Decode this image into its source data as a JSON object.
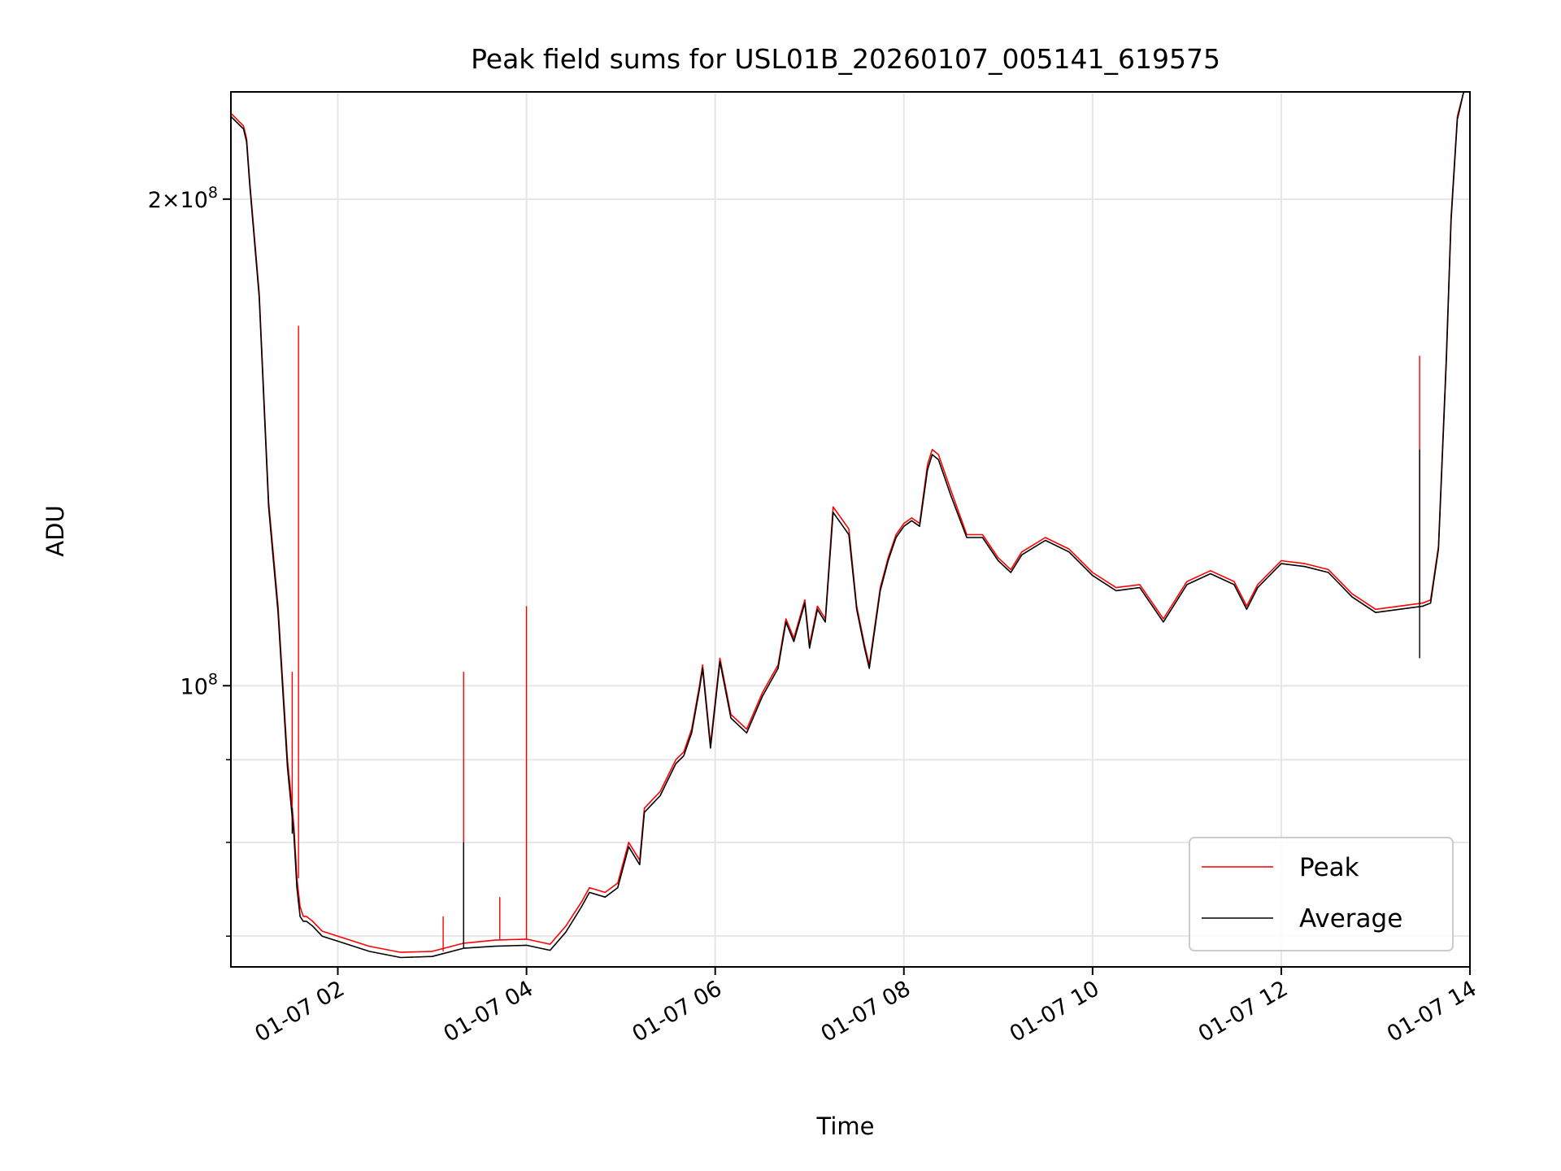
{
  "chart_data": {
    "type": "line",
    "title": "Peak field sums for USL01B_20260107_005141_619575",
    "xlabel": "Time",
    "ylabel": "ADU",
    "yscale": "log",
    "grid": true,
    "legend_position": "lower-right",
    "xlim": [
      "2026-01-07 00:52",
      "2026-01-07 14:00"
    ],
    "ylim": [
      67000000,
      233000000
    ],
    "x_ticks": [
      {
        "value": "2026-01-07 02:00",
        "label": "01-07 02"
      },
      {
        "value": "2026-01-07 04:00",
        "label": "01-07 04"
      },
      {
        "value": "2026-01-07 06:00",
        "label": "01-07 06"
      },
      {
        "value": "2026-01-07 08:00",
        "label": "01-07 08"
      },
      {
        "value": "2026-01-07 10:00",
        "label": "01-07 10"
      },
      {
        "value": "2026-01-07 12:00",
        "label": "01-07 12"
      },
      {
        "value": "2026-01-07 14:00",
        "label": "01-07 14"
      }
    ],
    "y_major_ticks": [
      {
        "value": 100000000,
        "base": "10",
        "exp": "8",
        "coef": ""
      },
      {
        "value": 200000000,
        "base": "10",
        "exp": "8",
        "coef": "2"
      }
    ],
    "y_minor_ticks": [
      70000000,
      80000000,
      90000000
    ],
    "series": [
      {
        "name": "Peak",
        "color": "#ff0000",
        "points": [
          [
            "2026-01-07 00:52",
            226000000
          ],
          [
            "2026-01-07 01:00",
            222000000
          ],
          [
            "2026-01-07 01:02",
            218000000
          ],
          [
            "2026-01-07 01:04",
            205000000
          ],
          [
            "2026-01-07 01:10",
            175000000
          ],
          [
            "2026-01-07 01:16",
            130000000
          ],
          [
            "2026-01-07 01:22",
            112000000
          ],
          [
            "2026-01-07 01:28",
            90000000
          ],
          [
            "2026-01-07 01:32",
            82000000
          ],
          [
            "2026-01-07 01:34",
            76000000
          ],
          [
            "2026-01-07 01:36",
            73000000
          ],
          [
            "2026-01-07 01:38",
            72000000
          ],
          [
            "2026-01-07 01:40",
            72000000
          ],
          [
            "2026-01-07 01:44",
            71500000
          ],
          [
            "2026-01-07 01:50",
            70500000
          ],
          [
            "2026-01-07 02:00",
            70000000
          ],
          [
            "2026-01-07 02:20",
            69000000
          ],
          [
            "2026-01-07 02:40",
            68400000
          ],
          [
            "2026-01-07 03:00",
            68500000
          ],
          [
            "2026-01-07 03:20",
            69300000
          ],
          [
            "2026-01-07 03:40",
            69600000
          ],
          [
            "2026-01-07 04:00",
            69700000
          ],
          [
            "2026-01-07 04:15",
            69200000
          ],
          [
            "2026-01-07 04:25",
            71000000
          ],
          [
            "2026-01-07 04:35",
            73500000
          ],
          [
            "2026-01-07 04:40",
            75000000
          ],
          [
            "2026-01-07 04:50",
            74500000
          ],
          [
            "2026-01-07 04:58",
            75500000
          ],
          [
            "2026-01-07 05:05",
            80000000
          ],
          [
            "2026-01-07 05:12",
            78000000
          ],
          [
            "2026-01-07 05:15",
            84000000
          ],
          [
            "2026-01-07 05:20",
            85000000
          ],
          [
            "2026-01-07 05:25",
            86000000
          ],
          [
            "2026-01-07 05:30",
            88000000
          ],
          [
            "2026-01-07 05:35",
            90000000
          ],
          [
            "2026-01-07 05:40",
            91000000
          ],
          [
            "2026-01-07 05:45",
            94000000
          ],
          [
            "2026-01-07 05:50",
            100000000
          ],
          [
            "2026-01-07 05:52",
            103000000
          ],
          [
            "2026-01-07 05:57",
            92000000
          ],
          [
            "2026-01-07 06:03",
            104000000
          ],
          [
            "2026-01-07 06:10",
            96000000
          ],
          [
            "2026-01-07 06:20",
            94000000
          ],
          [
            "2026-01-07 06:30",
            99000000
          ],
          [
            "2026-01-07 06:40",
            103000000
          ],
          [
            "2026-01-07 06:45",
            110000000
          ],
          [
            "2026-01-07 06:50",
            107000000
          ],
          [
            "2026-01-07 06:57",
            113000000
          ],
          [
            "2026-01-07 07:00",
            106000000
          ],
          [
            "2026-01-07 07:05",
            112000000
          ],
          [
            "2026-01-07 07:10",
            110000000
          ],
          [
            "2026-01-07 07:15",
            129000000
          ],
          [
            "2026-01-07 07:20",
            127000000
          ],
          [
            "2026-01-07 07:25",
            125000000
          ],
          [
            "2026-01-07 07:30",
            112000000
          ],
          [
            "2026-01-07 07:35",
            106000000
          ],
          [
            "2026-01-07 07:38",
            103000000
          ],
          [
            "2026-01-07 07:45",
            115000000
          ],
          [
            "2026-01-07 07:50",
            120000000
          ],
          [
            "2026-01-07 07:55",
            124000000
          ],
          [
            "2026-01-07 08:00",
            126000000
          ],
          [
            "2026-01-07 08:05",
            127000000
          ],
          [
            "2026-01-07 08:10",
            126000000
          ],
          [
            "2026-01-07 08:15",
            137000000
          ],
          [
            "2026-01-07 08:18",
            140000000
          ],
          [
            "2026-01-07 08:22",
            139000000
          ],
          [
            "2026-01-07 08:30",
            132000000
          ],
          [
            "2026-01-07 08:40",
            124000000
          ],
          [
            "2026-01-07 08:50",
            124000000
          ],
          [
            "2026-01-07 09:00",
            120000000
          ],
          [
            "2026-01-07 09:08",
            118000000
          ],
          [
            "2026-01-07 09:15",
            121000000
          ],
          [
            "2026-01-07 09:30",
            123500000
          ],
          [
            "2026-01-07 09:45",
            121500000
          ],
          [
            "2026-01-07 10:00",
            117500000
          ],
          [
            "2026-01-07 10:15",
            115000000
          ],
          [
            "2026-01-07 10:30",
            115500000
          ],
          [
            "2026-01-07 10:45",
            110000000
          ],
          [
            "2026-01-07 11:00",
            116000000
          ],
          [
            "2026-01-07 11:15",
            117800000
          ],
          [
            "2026-01-07 11:30",
            116000000
          ],
          [
            "2026-01-07 11:38",
            112000000
          ],
          [
            "2026-01-07 11:45",
            115500000
          ],
          [
            "2026-01-07 12:00",
            119500000
          ],
          [
            "2026-01-07 12:15",
            119000000
          ],
          [
            "2026-01-07 12:30",
            118000000
          ],
          [
            "2026-01-07 12:45",
            114000000
          ],
          [
            "2026-01-07 13:00",
            111500000
          ],
          [
            "2026-01-07 13:15",
            112000000
          ],
          [
            "2026-01-07 13:30",
            112500000
          ],
          [
            "2026-01-07 13:35",
            113000000
          ],
          [
            "2026-01-07 13:40",
            122000000
          ],
          [
            "2026-01-07 13:45",
            160000000
          ],
          [
            "2026-01-07 13:48",
            195000000
          ],
          [
            "2026-01-07 13:52",
            225000000
          ],
          [
            "2026-01-07 13:56",
            233000000
          ]
        ],
        "spikes": [
          [
            "2026-01-07 01:31",
            102000000
          ],
          [
            "2026-01-07 01:35",
            167000000
          ],
          [
            "2026-01-07 03:20",
            102000000
          ],
          [
            "2026-01-07 03:43",
            74000000
          ],
          [
            "2026-01-07 04:00",
            112000000
          ],
          [
            "2026-01-07 03:07",
            72000000
          ],
          [
            "2026-01-07 13:28",
            160000000
          ]
        ]
      },
      {
        "name": "Average",
        "color": "#000000",
        "points": [
          [
            "2026-01-07 00:52",
            225000000
          ],
          [
            "2026-01-07 01:00",
            221000000
          ],
          [
            "2026-01-07 01:02",
            217000000
          ],
          [
            "2026-01-07 01:04",
            204000000
          ],
          [
            "2026-01-07 01:10",
            174000000
          ],
          [
            "2026-01-07 01:16",
            129000000
          ],
          [
            "2026-01-07 01:22",
            111000000
          ],
          [
            "2026-01-07 01:28",
            89000000
          ],
          [
            "2026-01-07 01:32",
            81000000
          ],
          [
            "2026-01-07 01:34",
            75000000
          ],
          [
            "2026-01-07 01:36",
            72000000
          ],
          [
            "2026-01-07 01:38",
            71500000
          ],
          [
            "2026-01-07 01:40",
            71500000
          ],
          [
            "2026-01-07 01:44",
            71000000
          ],
          [
            "2026-01-07 01:50",
            70000000
          ],
          [
            "2026-01-07 02:00",
            69500000
          ],
          [
            "2026-01-07 02:20",
            68500000
          ],
          [
            "2026-01-07 02:40",
            67900000
          ],
          [
            "2026-01-07 03:00",
            68000000
          ],
          [
            "2026-01-07 03:20",
            68800000
          ],
          [
            "2026-01-07 03:40",
            69000000
          ],
          [
            "2026-01-07 04:00",
            69100000
          ],
          [
            "2026-01-07 04:15",
            68600000
          ],
          [
            "2026-01-07 04:25",
            70400000
          ],
          [
            "2026-01-07 04:35",
            73000000
          ],
          [
            "2026-01-07 04:40",
            74500000
          ],
          [
            "2026-01-07 04:50",
            74000000
          ],
          [
            "2026-01-07 04:58",
            75000000
          ],
          [
            "2026-01-07 05:05",
            79500000
          ],
          [
            "2026-01-07 05:12",
            77500000
          ],
          [
            "2026-01-07 05:15",
            83500000
          ],
          [
            "2026-01-07 05:20",
            84500000
          ],
          [
            "2026-01-07 05:25",
            85500000
          ],
          [
            "2026-01-07 05:30",
            87500000
          ],
          [
            "2026-01-07 05:35",
            89500000
          ],
          [
            "2026-01-07 05:40",
            90500000
          ],
          [
            "2026-01-07 05:45",
            93500000
          ],
          [
            "2026-01-07 05:50",
            99500000
          ],
          [
            "2026-01-07 05:52",
            102500000
          ],
          [
            "2026-01-07 05:57",
            91500000
          ],
          [
            "2026-01-07 06:03",
            103500000
          ],
          [
            "2026-01-07 06:10",
            95500000
          ],
          [
            "2026-01-07 06:20",
            93500000
          ],
          [
            "2026-01-07 06:30",
            98500000
          ],
          [
            "2026-01-07 06:40",
            102500000
          ],
          [
            "2026-01-07 06:45",
            109500000
          ],
          [
            "2026-01-07 06:50",
            106500000
          ],
          [
            "2026-01-07 06:57",
            112500000
          ],
          [
            "2026-01-07 07:00",
            105500000
          ],
          [
            "2026-01-07 07:05",
            111500000
          ],
          [
            "2026-01-07 07:10",
            109500000
          ],
          [
            "2026-01-07 07:15",
            128000000
          ],
          [
            "2026-01-07 07:20",
            126000000
          ],
          [
            "2026-01-07 07:25",
            124000000
          ],
          [
            "2026-01-07 07:30",
            111500000
          ],
          [
            "2026-01-07 07:35",
            105500000
          ],
          [
            "2026-01-07 07:38",
            102500000
          ],
          [
            "2026-01-07 07:45",
            114500000
          ],
          [
            "2026-01-07 07:50",
            119500000
          ],
          [
            "2026-01-07 07:55",
            123500000
          ],
          [
            "2026-01-07 08:00",
            125500000
          ],
          [
            "2026-01-07 08:05",
            126500000
          ],
          [
            "2026-01-07 08:10",
            125500000
          ],
          [
            "2026-01-07 08:15",
            136000000
          ],
          [
            "2026-01-07 08:18",
            139000000
          ],
          [
            "2026-01-07 08:22",
            138000000
          ],
          [
            "2026-01-07 08:30",
            131000000
          ],
          [
            "2026-01-07 08:40",
            123500000
          ],
          [
            "2026-01-07 08:50",
            123500000
          ],
          [
            "2026-01-07 09:00",
            119500000
          ],
          [
            "2026-01-07 09:08",
            117500000
          ],
          [
            "2026-01-07 09:15",
            120500000
          ],
          [
            "2026-01-07 09:30",
            123000000
          ],
          [
            "2026-01-07 09:45",
            121000000
          ],
          [
            "2026-01-07 10:00",
            117000000
          ],
          [
            "2026-01-07 10:15",
            114500000
          ],
          [
            "2026-01-07 10:30",
            115000000
          ],
          [
            "2026-01-07 10:45",
            109500000
          ],
          [
            "2026-01-07 11:00",
            115500000
          ],
          [
            "2026-01-07 11:15",
            117300000
          ],
          [
            "2026-01-07 11:30",
            115500000
          ],
          [
            "2026-01-07 11:38",
            111500000
          ],
          [
            "2026-01-07 11:45",
            115000000
          ],
          [
            "2026-01-07 12:00",
            119000000
          ],
          [
            "2026-01-07 12:15",
            118500000
          ],
          [
            "2026-01-07 12:30",
            117500000
          ],
          [
            "2026-01-07 12:45",
            113500000
          ],
          [
            "2026-01-07 13:00",
            111000000
          ],
          [
            "2026-01-07 13:15",
            111500000
          ],
          [
            "2026-01-07 13:30",
            112000000
          ],
          [
            "2026-01-07 13:35",
            112500000
          ],
          [
            "2026-01-07 13:40",
            121500000
          ],
          [
            "2026-01-07 13:45",
            159000000
          ],
          [
            "2026-01-07 13:48",
            194000000
          ],
          [
            "2026-01-07 13:52",
            224000000
          ],
          [
            "2026-01-07 13:56",
            233000000
          ]
        ],
        "spikes": [
          [
            "2026-01-07 01:31",
            84000000
          ],
          [
            "2026-01-07 03:20",
            80000000
          ],
          [
            "2026-01-07 13:28",
            140000000
          ],
          [
            "2026-01-07 13:28",
            104000000
          ]
        ]
      }
    ]
  },
  "legend": {
    "items": [
      {
        "label": "Peak",
        "color": "#ff0000"
      },
      {
        "label": "Average",
        "color": "#000000"
      }
    ]
  }
}
